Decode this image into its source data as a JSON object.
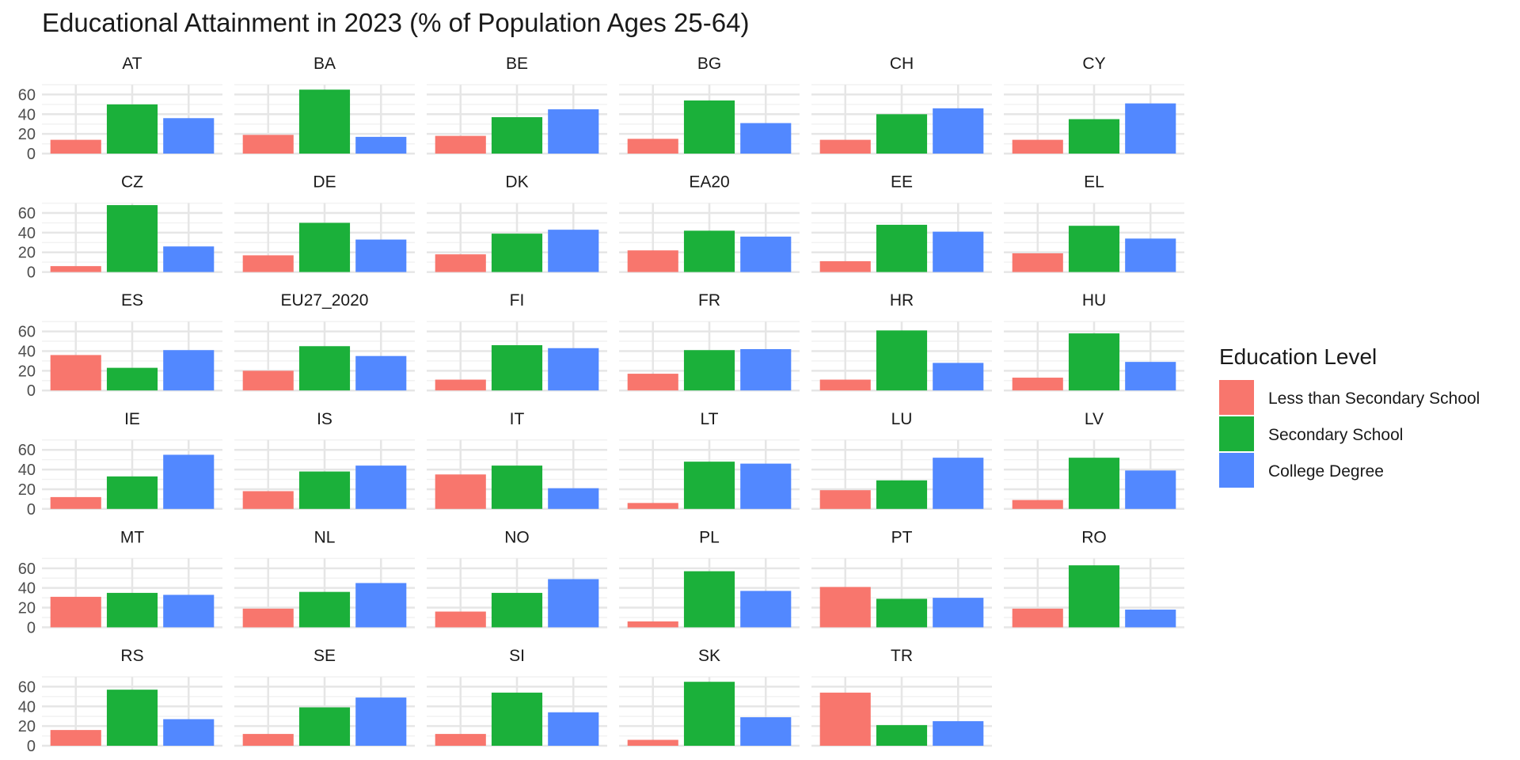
{
  "chart_data": {
    "type": "bar",
    "title": "Educational Attainment in 2023 (% of Population Ages 25-64)",
    "xlabel": "",
    "ylabel": "",
    "ylim": [
      0,
      70
    ],
    "y_ticks": [
      "0",
      "20",
      "40",
      "60"
    ],
    "categories": [
      "Less than Secondary School",
      "Secondary School",
      "College Degree"
    ],
    "legend": {
      "title": "Education Level",
      "placement": "right",
      "entries": [
        "Less than Secondary School",
        "Secondary School",
        "College Degree"
      ]
    },
    "colors": [
      "#F8766D",
      "#1BB03A",
      "#5288FF"
    ],
    "grid": true,
    "facets": [
      {
        "name": "AT",
        "values": [
          14,
          50,
          36
        ]
      },
      {
        "name": "BA",
        "values": [
          19,
          65,
          17
        ]
      },
      {
        "name": "BE",
        "values": [
          18,
          37,
          45
        ]
      },
      {
        "name": "BG",
        "values": [
          15,
          54,
          31
        ]
      },
      {
        "name": "CH",
        "values": [
          14,
          40,
          46
        ]
      },
      {
        "name": "CY",
        "values": [
          14,
          35,
          51
        ]
      },
      {
        "name": "CZ",
        "values": [
          6,
          68,
          26
        ]
      },
      {
        "name": "DE",
        "values": [
          17,
          50,
          33
        ]
      },
      {
        "name": "DK",
        "values": [
          18,
          39,
          43
        ]
      },
      {
        "name": "EA20",
        "values": [
          22,
          42,
          36
        ]
      },
      {
        "name": "EE",
        "values": [
          11,
          48,
          41
        ]
      },
      {
        "name": "EL",
        "values": [
          19,
          47,
          34
        ]
      },
      {
        "name": "ES",
        "values": [
          36,
          23,
          41
        ]
      },
      {
        "name": "EU27_2020",
        "values": [
          20,
          45,
          35
        ]
      },
      {
        "name": "FI",
        "values": [
          11,
          46,
          43
        ]
      },
      {
        "name": "FR",
        "values": [
          17,
          41,
          42
        ]
      },
      {
        "name": "HR",
        "values": [
          11,
          61,
          28
        ]
      },
      {
        "name": "HU",
        "values": [
          13,
          58,
          29
        ]
      },
      {
        "name": "IE",
        "values": [
          12,
          33,
          55
        ]
      },
      {
        "name": "IS",
        "values": [
          18,
          38,
          44
        ]
      },
      {
        "name": "IT",
        "values": [
          35,
          44,
          21
        ]
      },
      {
        "name": "LT",
        "values": [
          6,
          48,
          46
        ]
      },
      {
        "name": "LU",
        "values": [
          19,
          29,
          52
        ]
      },
      {
        "name": "LV",
        "values": [
          9,
          52,
          39
        ]
      },
      {
        "name": "MT",
        "values": [
          31,
          35,
          33
        ]
      },
      {
        "name": "NL",
        "values": [
          19,
          36,
          45
        ]
      },
      {
        "name": "NO",
        "values": [
          16,
          35,
          49
        ]
      },
      {
        "name": "PL",
        "values": [
          6,
          57,
          37
        ]
      },
      {
        "name": "PT",
        "values": [
          41,
          29,
          30
        ]
      },
      {
        "name": "RO",
        "values": [
          19,
          63,
          18
        ]
      },
      {
        "name": "RS",
        "values": [
          16,
          57,
          27
        ]
      },
      {
        "name": "SE",
        "values": [
          12,
          39,
          49
        ]
      },
      {
        "name": "SI",
        "values": [
          12,
          54,
          34
        ]
      },
      {
        "name": "SK",
        "values": [
          6,
          65,
          29
        ]
      },
      {
        "name": "TR",
        "values": [
          54,
          21,
          25
        ]
      }
    ]
  }
}
